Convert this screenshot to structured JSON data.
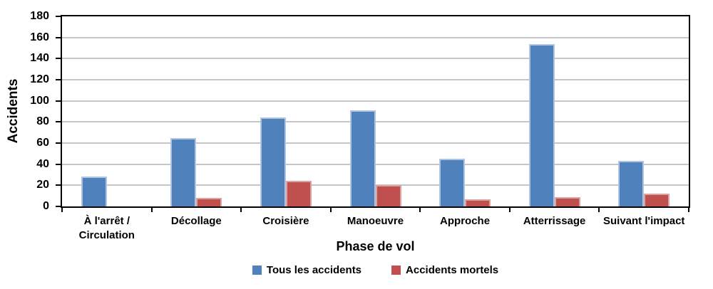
{
  "chart_data": {
    "type": "bar",
    "title": "",
    "ylabel": "Accidents",
    "xlabel": "Phase de vol",
    "categories": [
      "À l'arrêt / Circulation",
      "Décollage",
      "Croisière",
      "Manoeuvre",
      "Approche",
      "Atterrissage",
      "Suivant l'impact"
    ],
    "series": [
      {
        "name": "Tous les accidents",
        "color": "#4F81BD",
        "border_color": "#AEC4E0",
        "values": [
          28,
          65,
          84,
          91,
          45,
          154,
          43
        ]
      },
      {
        "name": "Accidents mortels",
        "color": "#C0504D",
        "border_color": "#DDA3A1",
        "values": [
          0,
          8,
          24,
          20,
          7,
          9,
          12
        ]
      }
    ],
    "ylim": [
      0,
      180
    ],
    "ytick_step": 20,
    "grid": true,
    "legend_position": "bottom",
    "gridline_color": "#C6C6C6",
    "axis_color": "#000000",
    "background_color": "#FFFFFF"
  }
}
